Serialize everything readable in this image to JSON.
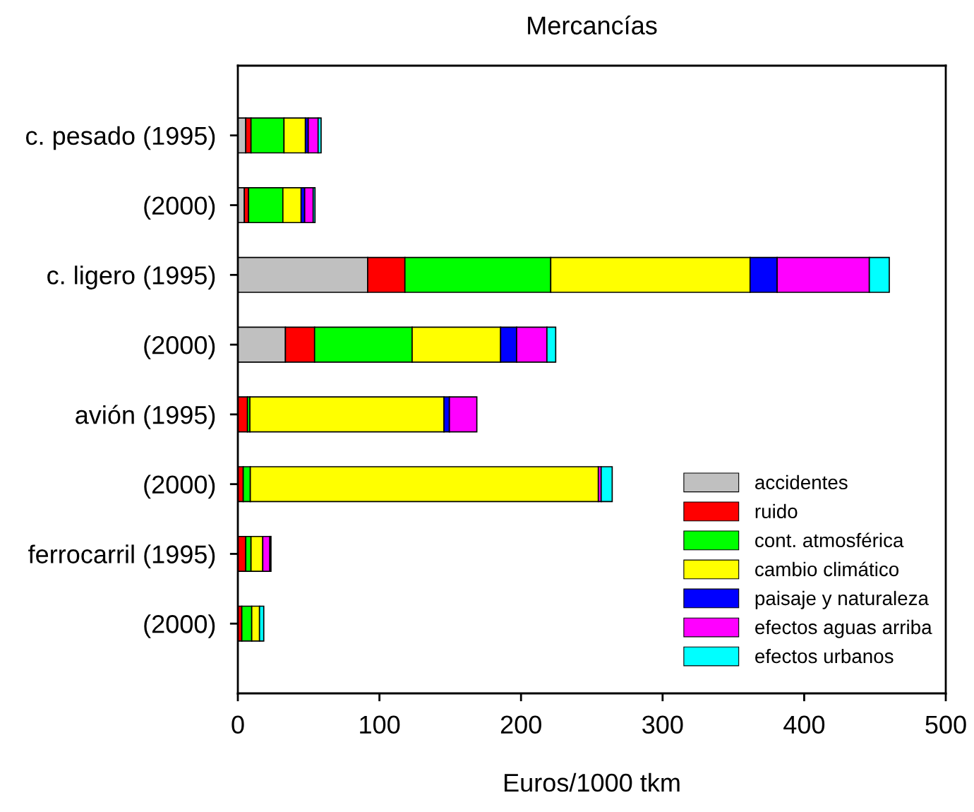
{
  "chart_data": {
    "type": "bar",
    "orientation": "horizontal",
    "stacked": true,
    "title": "Mercancías",
    "xlabel": "Euros/1000 tkm",
    "categories": [
      "c. pesado (1995)",
      "(2000)",
      "c. ligero (1995)",
      "(2000)",
      "avión (1995)",
      "(2000)",
      "ferrocarril (1995)",
      "(2000)"
    ],
    "xlim": [
      0,
      500
    ],
    "xticks": [
      0,
      100,
      200,
      300,
      400,
      500
    ],
    "grid": false,
    "legend": "bottom right",
    "series": [
      {
        "name": "accidentes",
        "color": "#c0c0c0",
        "values": [
          5.6,
          4.6,
          91.7,
          33.6,
          0,
          0,
          0,
          0
        ]
      },
      {
        "name": "ruido",
        "color": "#ff0000",
        "values": [
          3.7,
          3.0,
          26.3,
          20.6,
          6.8,
          3.8,
          5.6,
          2.8
        ]
      },
      {
        "name": "cont. atmosférica",
        "color": "#00ff00",
        "values": [
          23.3,
          24.2,
          103.0,
          68.9,
          1.7,
          5.0,
          3.7,
          7.0
        ]
      },
      {
        "name": "cambio climático",
        "color": "#ffff00",
        "values": [
          15.1,
          12.9,
          140.8,
          62.5,
          137.1,
          245.8,
          8.3,
          5.5
        ]
      },
      {
        "name": "paisaje y naturaleza",
        "color": "#0000ff",
        "values": [
          2.0,
          2.5,
          19.1,
          11.3,
          3.8,
          0,
          0,
          0
        ]
      },
      {
        "name": "efectos aguas arriba",
        "color": "#ff00ff",
        "values": [
          7.0,
          6.0,
          65.1,
          21.4,
          19.4,
          2.0,
          5.0,
          0
        ]
      },
      {
        "name": "efectos urbanos",
        "color": "#00ffff",
        "values": [
          2.1,
          1.3,
          14.1,
          6.2,
          0,
          7.8,
          0.8,
          3.0
        ]
      }
    ]
  }
}
